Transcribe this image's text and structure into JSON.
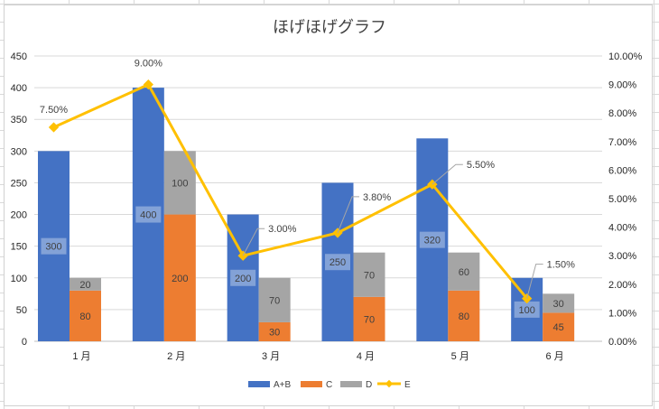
{
  "chart_data": {
    "type": "bar",
    "title": "ほげほげグラフ",
    "categories": [
      "1 月",
      "2 月",
      "3 月",
      "4 月",
      "5 月",
      "6 月"
    ],
    "series": [
      {
        "name": "A+B",
        "kind": "bar",
        "group": 1,
        "values": [
          300,
          400,
          200,
          250,
          320,
          100
        ],
        "color": "#4472C4"
      },
      {
        "name": "C",
        "kind": "stacked-bar",
        "group": 2,
        "values": [
          80,
          200,
          30,
          70,
          80,
          45
        ],
        "color": "#ED7D31"
      },
      {
        "name": "D",
        "kind": "stacked-bar",
        "group": 2,
        "values": [
          20,
          100,
          70,
          70,
          60,
          30
        ],
        "color": "#A5A5A5"
      },
      {
        "name": "E",
        "kind": "line",
        "axis": "secondary",
        "values": [
          7.5,
          9.0,
          3.0,
          3.8,
          5.5,
          1.5
        ],
        "labels": [
          "7.50%",
          "9.00%",
          "3.00%",
          "3.80%",
          "5.50%",
          "1.50%"
        ],
        "color": "#FFC000"
      }
    ],
    "ylim": [
      0,
      450
    ],
    "yticks": [
      "0",
      "50",
      "100",
      "150",
      "200",
      "250",
      "300",
      "350",
      "400",
      "450"
    ],
    "y2lim": [
      0,
      10
    ],
    "y2ticks": [
      "0.00%",
      "1.00%",
      "2.00%",
      "3.00%",
      "4.00%",
      "5.00%",
      "6.00%",
      "7.00%",
      "8.00%",
      "9.00%",
      "10.00%"
    ],
    "grid": true,
    "legend": "bottom"
  }
}
